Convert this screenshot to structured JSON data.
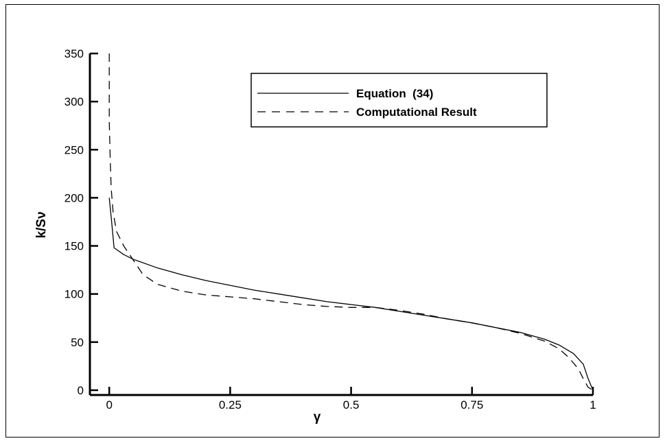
{
  "chart_data": {
    "type": "line",
    "xlabel": "γ",
    "ylabel": "k/Sν",
    "xlim": [
      -0.04,
      1.0
    ],
    "ylim": [
      -5,
      350
    ],
    "xticks": [
      0,
      0.25,
      0.5,
      0.75,
      1
    ],
    "xtick_labels": [
      "0",
      "0.25",
      "0.5",
      "0.75",
      "1"
    ],
    "yticks": [
      0,
      50,
      100,
      150,
      200,
      250,
      300,
      350
    ],
    "ytick_labels": [
      "0",
      "50",
      "100",
      "150",
      "200",
      "250",
      "300",
      "350"
    ],
    "grid": false,
    "legend_position": "top-right",
    "series": [
      {
        "name": "Equation  (34)",
        "style": "solid",
        "color": "#000000",
        "points": [
          [
            0.0,
            200
          ],
          [
            0.005,
            175
          ],
          [
            0.01,
            148
          ],
          [
            0.03,
            141
          ],
          [
            0.05,
            136
          ],
          [
            0.1,
            127
          ],
          [
            0.15,
            120
          ],
          [
            0.2,
            114
          ],
          [
            0.25,
            109
          ],
          [
            0.3,
            104
          ],
          [
            0.35,
            100
          ],
          [
            0.4,
            96
          ],
          [
            0.45,
            92
          ],
          [
            0.5,
            89
          ],
          [
            0.55,
            86
          ],
          [
            0.6,
            82
          ],
          [
            0.65,
            78
          ],
          [
            0.7,
            74
          ],
          [
            0.75,
            70
          ],
          [
            0.8,
            65
          ],
          [
            0.85,
            60
          ],
          [
            0.9,
            53
          ],
          [
            0.93,
            47
          ],
          [
            0.96,
            38
          ],
          [
            0.98,
            27
          ],
          [
            0.99,
            12
          ],
          [
            1.0,
            0
          ]
        ]
      },
      {
        "name": "Computational Result",
        "style": "dashed",
        "color": "#000000",
        "points": [
          [
            0.0,
            350
          ],
          [
            0.0,
            280
          ],
          [
            0.002,
            240
          ],
          [
            0.004,
            210
          ],
          [
            0.008,
            185
          ],
          [
            0.015,
            165
          ],
          [
            0.03,
            150
          ],
          [
            0.05,
            135
          ],
          [
            0.07,
            120
          ],
          [
            0.1,
            110
          ],
          [
            0.15,
            103
          ],
          [
            0.2,
            99
          ],
          [
            0.25,
            97
          ],
          [
            0.3,
            95
          ],
          [
            0.35,
            92
          ],
          [
            0.4,
            89
          ],
          [
            0.45,
            87
          ],
          [
            0.5,
            86
          ],
          [
            0.55,
            86
          ],
          [
            0.6,
            83
          ],
          [
            0.65,
            79
          ],
          [
            0.7,
            74
          ],
          [
            0.75,
            70
          ],
          [
            0.8,
            65
          ],
          [
            0.85,
            59
          ],
          [
            0.9,
            51
          ],
          [
            0.93,
            43
          ],
          [
            0.95,
            34
          ],
          [
            0.97,
            22
          ],
          [
            0.98,
            12
          ],
          [
            0.99,
            3
          ],
          [
            1.0,
            0
          ]
        ]
      }
    ]
  }
}
